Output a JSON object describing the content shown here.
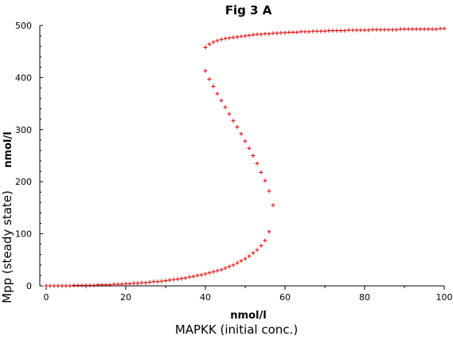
{
  "chart_data": {
    "type": "scatter",
    "title": "Fig 3 A",
    "xlabel": "MAPKK (initial conc.)",
    "ylabel": "Mpp (steady state)",
    "xunit": "nmol/l",
    "yunit": "nmol/l",
    "xlim": [
      0,
      100
    ],
    "ylim": [
      0,
      500
    ],
    "xticks": [
      0,
      20,
      40,
      60,
      80,
      100
    ],
    "yticks": [
      0,
      100,
      200,
      300,
      400,
      500
    ],
    "grid": false,
    "marker_color": "#e00000",
    "series": [
      {
        "points": [
          [
            0,
            0
          ],
          [
            1,
            0
          ],
          [
            2,
            0
          ],
          [
            3,
            0
          ],
          [
            4,
            0
          ],
          [
            5,
            0
          ],
          [
            6,
            0
          ],
          [
            7,
            1
          ],
          [
            8,
            1
          ],
          [
            9,
            1
          ],
          [
            10,
            1
          ],
          [
            11,
            1
          ],
          [
            12,
            1
          ],
          [
            13,
            2
          ],
          [
            14,
            2
          ],
          [
            15,
            2
          ],
          [
            16,
            2
          ],
          [
            17,
            3
          ],
          [
            18,
            3
          ],
          [
            19,
            3
          ],
          [
            20,
            4
          ],
          [
            21,
            4
          ],
          [
            22,
            5
          ],
          [
            23,
            5
          ],
          [
            24,
            6
          ],
          [
            25,
            6
          ],
          [
            26,
            7
          ],
          [
            27,
            8
          ],
          [
            28,
            8
          ],
          [
            29,
            9
          ],
          [
            30,
            10
          ],
          [
            31,
            11
          ],
          [
            32,
            12
          ],
          [
            33,
            13
          ],
          [
            34,
            14
          ],
          [
            35,
            15
          ],
          [
            36,
            17
          ],
          [
            37,
            18
          ],
          [
            38,
            20
          ],
          [
            39,
            21
          ],
          [
            40,
            23
          ],
          [
            41,
            25
          ],
          [
            42,
            27
          ],
          [
            43,
            29
          ],
          [
            44,
            31
          ],
          [
            45,
            34
          ],
          [
            46,
            37
          ],
          [
            47,
            40
          ],
          [
            48,
            44
          ],
          [
            49,
            48
          ],
          [
            50,
            52
          ],
          [
            51,
            57
          ],
          [
            52,
            63
          ],
          [
            53,
            69
          ],
          [
            54,
            77
          ],
          [
            55,
            87
          ],
          [
            56,
            104
          ],
          [
            57,
            155
          ],
          [
            56,
            182
          ],
          [
            55,
            202
          ],
          [
            54,
            218
          ],
          [
            53,
            235
          ],
          [
            52,
            250
          ],
          [
            51,
            264
          ],
          [
            50,
            278
          ],
          [
            49,
            292
          ],
          [
            48,
            305
          ],
          [
            47,
            317
          ],
          [
            46,
            330
          ],
          [
            45,
            343
          ],
          [
            44,
            356
          ],
          [
            43,
            369
          ],
          [
            42,
            383
          ],
          [
            41,
            397
          ],
          [
            40,
            413
          ],
          [
            40,
            458
          ],
          [
            41,
            464
          ],
          [
            42,
            468
          ],
          [
            43,
            471
          ],
          [
            44,
            473
          ],
          [
            45,
            475
          ],
          [
            46,
            476
          ],
          [
            47,
            477
          ],
          [
            48,
            478
          ],
          [
            49,
            479
          ],
          [
            50,
            480
          ],
          [
            51,
            481
          ],
          [
            52,
            482
          ],
          [
            53,
            483
          ],
          [
            54,
            483
          ],
          [
            55,
            484
          ],
          [
            56,
            484
          ],
          [
            57,
            485
          ],
          [
            58,
            485
          ],
          [
            59,
            486
          ],
          [
            60,
            486
          ],
          [
            61,
            487
          ],
          [
            62,
            487
          ],
          [
            63,
            487
          ],
          [
            64,
            488
          ],
          [
            65,
            488
          ],
          [
            66,
            488
          ],
          [
            67,
            489
          ],
          [
            68,
            489
          ],
          [
            69,
            489
          ],
          [
            70,
            489
          ],
          [
            71,
            490
          ],
          [
            72,
            490
          ],
          [
            73,
            490
          ],
          [
            74,
            490
          ],
          [
            75,
            490
          ],
          [
            76,
            491
          ],
          [
            77,
            491
          ],
          [
            78,
            491
          ],
          [
            79,
            491
          ],
          [
            80,
            491
          ],
          [
            81,
            491
          ],
          [
            82,
            492
          ],
          [
            83,
            492
          ],
          [
            84,
            492
          ],
          [
            85,
            492
          ],
          [
            86,
            492
          ],
          [
            87,
            492
          ],
          [
            88,
            492
          ],
          [
            89,
            493
          ],
          [
            90,
            493
          ],
          [
            91,
            493
          ],
          [
            92,
            493
          ],
          [
            93,
            493
          ],
          [
            94,
            493
          ],
          [
            95,
            493
          ],
          [
            96,
            493
          ],
          [
            97,
            493
          ],
          [
            98,
            493
          ],
          [
            99,
            494
          ],
          [
            100,
            494
          ]
        ]
      }
    ]
  }
}
